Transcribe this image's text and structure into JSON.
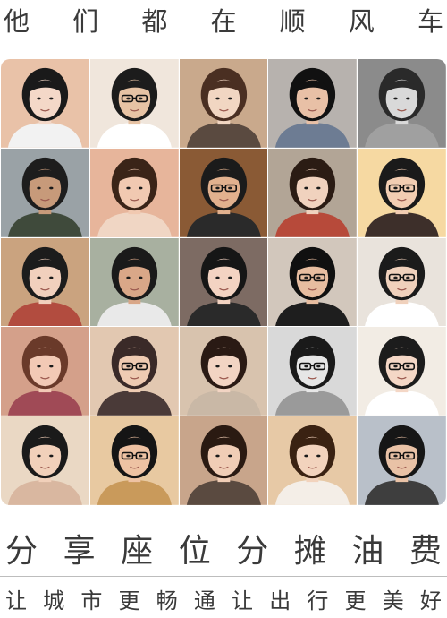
{
  "header": {
    "title_chars": [
      "他",
      "们",
      "都",
      "在",
      "顺",
      "风",
      "车"
    ]
  },
  "grid": {
    "photos": [
      {
        "bg": "#e9c2a8",
        "skin": "#f4d8c8",
        "hair": "#1a1a1a",
        "shirt": "#f2f2f2",
        "glasses": false
      },
      {
        "bg": "#f0e6dc",
        "skin": "#e7c3a4",
        "hair": "#1c1c1c",
        "shirt": "#ffffff",
        "glasses": true
      },
      {
        "bg": "#c9a98c",
        "skin": "#f1d6c2",
        "hair": "#4a2f22",
        "shirt": "#5a4a40",
        "glasses": false
      },
      {
        "bg": "#b7b2ae",
        "skin": "#e8c0a6",
        "hair": "#111111",
        "shirt": "#6d7c93",
        "glasses": false
      },
      {
        "bg": "#8b8b8b",
        "skin": "#d9d9d9",
        "hair": "#2a2a2a",
        "shirt": "#a0a0a0",
        "glasses": false
      },
      {
        "bg": "#9aa2a6",
        "skin": "#c79a7a",
        "hair": "#1d1d1d",
        "shirt": "#3f4a3b",
        "glasses": false
      },
      {
        "bg": "#e7b59b",
        "skin": "#f1c9b1",
        "hair": "#3a2418",
        "shirt": "#f0d6c4",
        "glasses": false
      },
      {
        "bg": "#8a5a35",
        "skin": "#e2b18e",
        "hair": "#1b1b1b",
        "shirt": "#2a2a2a",
        "glasses": true
      },
      {
        "bg": "#b2a596",
        "skin": "#f0d2be",
        "hair": "#2b1c14",
        "shirt": "#b74a3a",
        "glasses": false
      },
      {
        "bg": "#f6d9a2",
        "skin": "#f2cdb2",
        "hair": "#1a1a1a",
        "shirt": "#3d2f2a",
        "glasses": true
      },
      {
        "bg": "#caa37f",
        "skin": "#f1d0bd",
        "hair": "#1c1c1c",
        "shirt": "#b24c3f",
        "glasses": false
      },
      {
        "bg": "#a8b0a0",
        "skin": "#d9a788",
        "hair": "#1a1a1a",
        "shirt": "#e9e9e9",
        "glasses": false
      },
      {
        "bg": "#7d6b63",
        "skin": "#f3d3c2",
        "hair": "#161616",
        "shirt": "#2a2a2a",
        "glasses": false
      },
      {
        "bg": "#d2c7bc",
        "skin": "#e7bda0",
        "hair": "#101010",
        "shirt": "#1e1e1e",
        "glasses": true
      },
      {
        "bg": "#e9e3dc",
        "skin": "#f0d1bc",
        "hair": "#1b1b1b",
        "shirt": "#ffffff",
        "glasses": true
      },
      {
        "bg": "#d4a08a",
        "skin": "#f2c9b5",
        "hair": "#6a3a2a",
        "shirt": "#a04a56",
        "glasses": false
      },
      {
        "bg": "#e2c8b1",
        "skin": "#efcbb2",
        "hair": "#3a2a28",
        "shirt": "#4a3a38",
        "glasses": true
      },
      {
        "bg": "#d8c3ae",
        "skin": "#f2d4c3",
        "hair": "#2a1a14",
        "shirt": "#c9b8a6",
        "glasses": false
      },
      {
        "bg": "#d9d9d9",
        "skin": "#e6e6e6",
        "hair": "#1a1a1a",
        "shirt": "#9a9a9a",
        "glasses": true
      },
      {
        "bg": "#f2ece4",
        "skin": "#f4d7c6",
        "hair": "#1c1c1c",
        "shirt": "#ffffff",
        "glasses": true
      },
      {
        "bg": "#ead8c4",
        "skin": "#f1d0ba",
        "hair": "#1a1a1a",
        "shirt": "#d9b7a0",
        "glasses": false
      },
      {
        "bg": "#e8c9a1",
        "skin": "#eec2a3",
        "hair": "#151515",
        "shirt": "#c99a5b",
        "glasses": true
      },
      {
        "bg": "#c8a58b",
        "skin": "#f0cdb6",
        "hair": "#2a1a12",
        "shirt": "#5a4a40",
        "glasses": false
      },
      {
        "bg": "#e7c9a6",
        "skin": "#f2d3bd",
        "hair": "#3a2212",
        "shirt": "#f4eee7",
        "glasses": false
      },
      {
        "bg": "#b9c0c9",
        "skin": "#e9c2a6",
        "hair": "#161616",
        "shirt": "#3e3e3e",
        "glasses": true
      }
    ]
  },
  "slogan": {
    "chars": [
      "分",
      "享",
      "座",
      "位",
      "分",
      "摊",
      "油",
      "费"
    ]
  },
  "subtitle": {
    "chars": [
      "让",
      "城",
      "市",
      "更",
      "畅",
      "通",
      "让",
      "出",
      "行",
      "更",
      "美",
      "好"
    ]
  }
}
